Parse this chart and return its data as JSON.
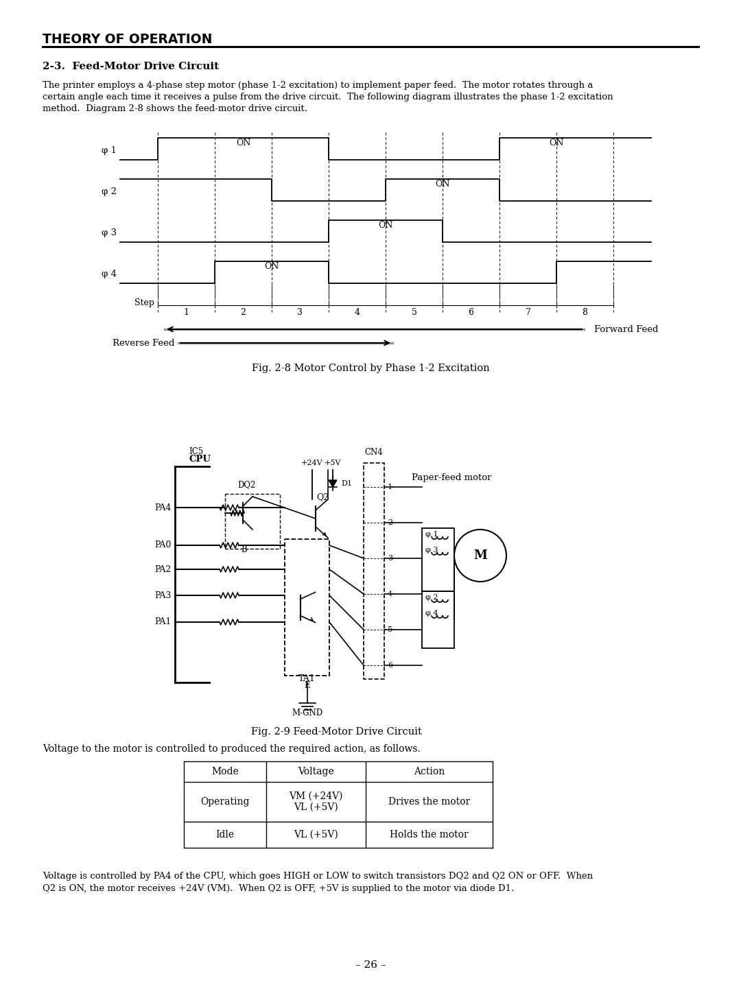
{
  "page_title": "THEORY OF OPERATION",
  "section_title": "2-3.  Feed-Motor Drive Circuit",
  "body_text_lines": [
    "The printer employs a 4-phase step motor (phase 1-2 excitation) to implement paper feed.  The motor rotates through a",
    "certain angle each time it receives a pulse from the drive circuit.  The following diagram illustrates the phase 1-2 excitation",
    "method.  Diagram 2-8 shows the feed-motor drive circuit."
  ],
  "fig1_caption": "Fig. 2-8 Motor Control by Phase 1-2 Excitation",
  "fig2_caption": "Fig. 2-9 Feed-Motor Drive Circuit",
  "voltage_text": "Voltage to the motor is controlled to produced the required action, as follows.",
  "table_headers": [
    "Mode",
    "Voltage",
    "Action"
  ],
  "table_rows": [
    [
      "Operating",
      "VM (+24V)\nVL (+5V)",
      "Drives the motor"
    ],
    [
      "Idle",
      "VL (+5V)",
      "Holds the motor"
    ]
  ],
  "closing_text_lines": [
    "Voltage is controlled by PA4 of the CPU, which goes HIGH or LOW to switch transistors DQ2 and Q2 ON or OFF.  When",
    "Q2 is ON, the motor receives +24V (VM).  When Q2 is OFF, +5V is supplied to the motor via diode D1."
  ],
  "page_number": "– 26 –",
  "bg_color": "#ffffff",
  "phi_labels": [
    "φ 1",
    "φ 2",
    "φ 3",
    "φ 4"
  ],
  "pa_labels": [
    "PA4",
    "PA0",
    "PA2",
    "PA3",
    "PA1"
  ]
}
